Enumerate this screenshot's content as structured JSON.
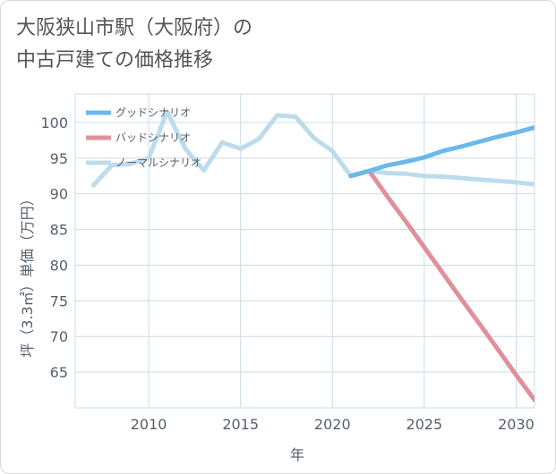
{
  "title": {
    "line1": "大阪狭山市駅（大阪府）の",
    "line2": "中古戸建ての価格推移"
  },
  "colors": {
    "good": "#6cb8ea",
    "bad": "#e0909a",
    "normal": "#bcdcec",
    "grid": "#c8dce8",
    "tick": "#55606e"
  },
  "chart_data": {
    "type": "line",
    "title": "大阪狭山市駅（大阪府）の中古戸建ての価格推移",
    "xlabel": "年",
    "ylabel": "坪（3.3㎡）単価（万円）",
    "xlim": [
      2006,
      2031
    ],
    "ylim": [
      60,
      104
    ],
    "xticks": [
      2010,
      2015,
      2020,
      2025,
      2030
    ],
    "yticks": [
      65,
      70,
      75,
      80,
      85,
      90,
      95,
      100
    ],
    "legend_position": "top-left",
    "series": [
      {
        "name": "グッドシナリオ",
        "color": "#6cb8ea",
        "x": [
          2021,
          2022,
          2023,
          2024,
          2025,
          2026,
          2027,
          2028,
          2029,
          2030,
          2031
        ],
        "y": [
          92.5,
          93.2,
          94.0,
          94.5,
          95.1,
          96.0,
          96.6,
          97.3,
          98.0,
          98.6,
          99.3
        ]
      },
      {
        "name": "バッドシナリオ",
        "color": "#e0909a",
        "x": [
          2021,
          2022,
          2023,
          2024,
          2025,
          2026,
          2027,
          2028,
          2029,
          2030,
          2031
        ],
        "y": [
          92.5,
          93.2,
          89.6,
          86.1,
          82.5,
          78.9,
          75.3,
          71.8,
          68.2,
          64.6,
          61.1
        ]
      },
      {
        "name": "ノーマルシナリオ",
        "color": "#bcdcec",
        "x": [
          2007,
          2008,
          2009,
          2010,
          2011,
          2012,
          2013,
          2014,
          2015,
          2016,
          2017,
          2018,
          2019,
          2020,
          2021,
          2022,
          2023,
          2024,
          2025,
          2026,
          2027,
          2028,
          2029,
          2030,
          2031
        ],
        "y": [
          91.2,
          94.0,
          94.2,
          95.0,
          101.5,
          96.3,
          93.3,
          97.2,
          96.3,
          97.7,
          101.0,
          100.8,
          97.8,
          96.0,
          92.5,
          93.2,
          92.9,
          92.8,
          92.5,
          92.4,
          92.2,
          92.0,
          91.8,
          91.6,
          91.3
        ]
      }
    ]
  }
}
